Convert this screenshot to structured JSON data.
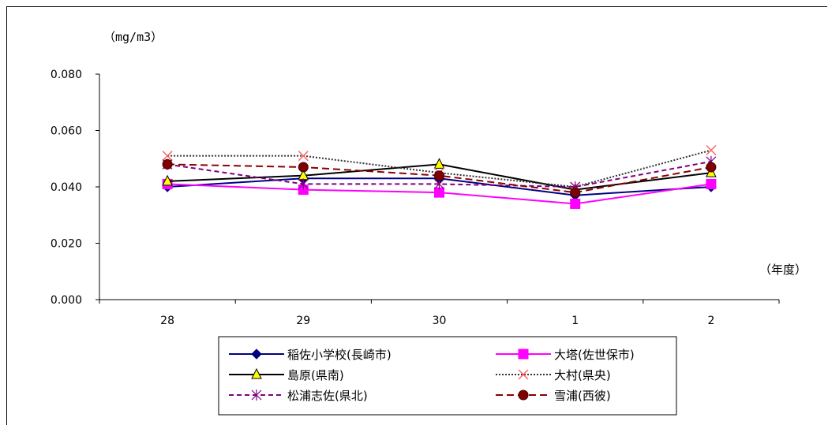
{
  "chart_data": {
    "type": "line",
    "y_unit_label": "（mg/m3）",
    "x_unit_label": "（年度）",
    "categories": [
      "28",
      "29",
      "30",
      "1",
      "2"
    ],
    "ylim": [
      0,
      0.08
    ],
    "yticks": [
      "0.000",
      "0.020",
      "0.040",
      "0.060",
      "0.080"
    ],
    "ytick_values": [
      0,
      0.02,
      0.04,
      0.06,
      0.08
    ],
    "grid": false,
    "legend_position": "bottom",
    "series": [
      {
        "name": "稲佐小学校(長崎市)",
        "values": [
          0.04,
          0.043,
          0.043,
          0.037,
          0.04
        ],
        "color": "#000080",
        "dash": "solid",
        "marker": "diamond",
        "marker_fill": "#000080"
      },
      {
        "name": "大塔(佐世保市)",
        "values": [
          0.041,
          0.039,
          0.038,
          0.034,
          0.041
        ],
        "color": "#ff00ff",
        "dash": "solid",
        "marker": "square",
        "marker_fill": "#ff00ff"
      },
      {
        "name": "島原(県南)",
        "values": [
          0.042,
          0.044,
          0.048,
          0.039,
          0.045
        ],
        "color": "#000000",
        "dash": "solid",
        "marker": "triangle",
        "marker_fill": "#ffff00"
      },
      {
        "name": "大村(県央)",
        "values": [
          0.051,
          0.051,
          0.045,
          0.04,
          0.053
        ],
        "color": "#333333",
        "dash": "dot",
        "marker": "x",
        "marker_fill": "#ff6666"
      },
      {
        "name": "松浦志佐(県北)",
        "values": [
          0.048,
          0.041,
          0.041,
          0.04,
          0.049
        ],
        "color": "#800080",
        "dash": "dash",
        "marker": "star",
        "marker_fill": "#800080"
      },
      {
        "name": "雪浦(西彼)",
        "values": [
          0.048,
          0.047,
          0.044,
          0.038,
          0.047
        ],
        "color": "#8b0000",
        "dash": "longdash",
        "marker": "circle",
        "marker_fill": "#800000"
      }
    ]
  }
}
